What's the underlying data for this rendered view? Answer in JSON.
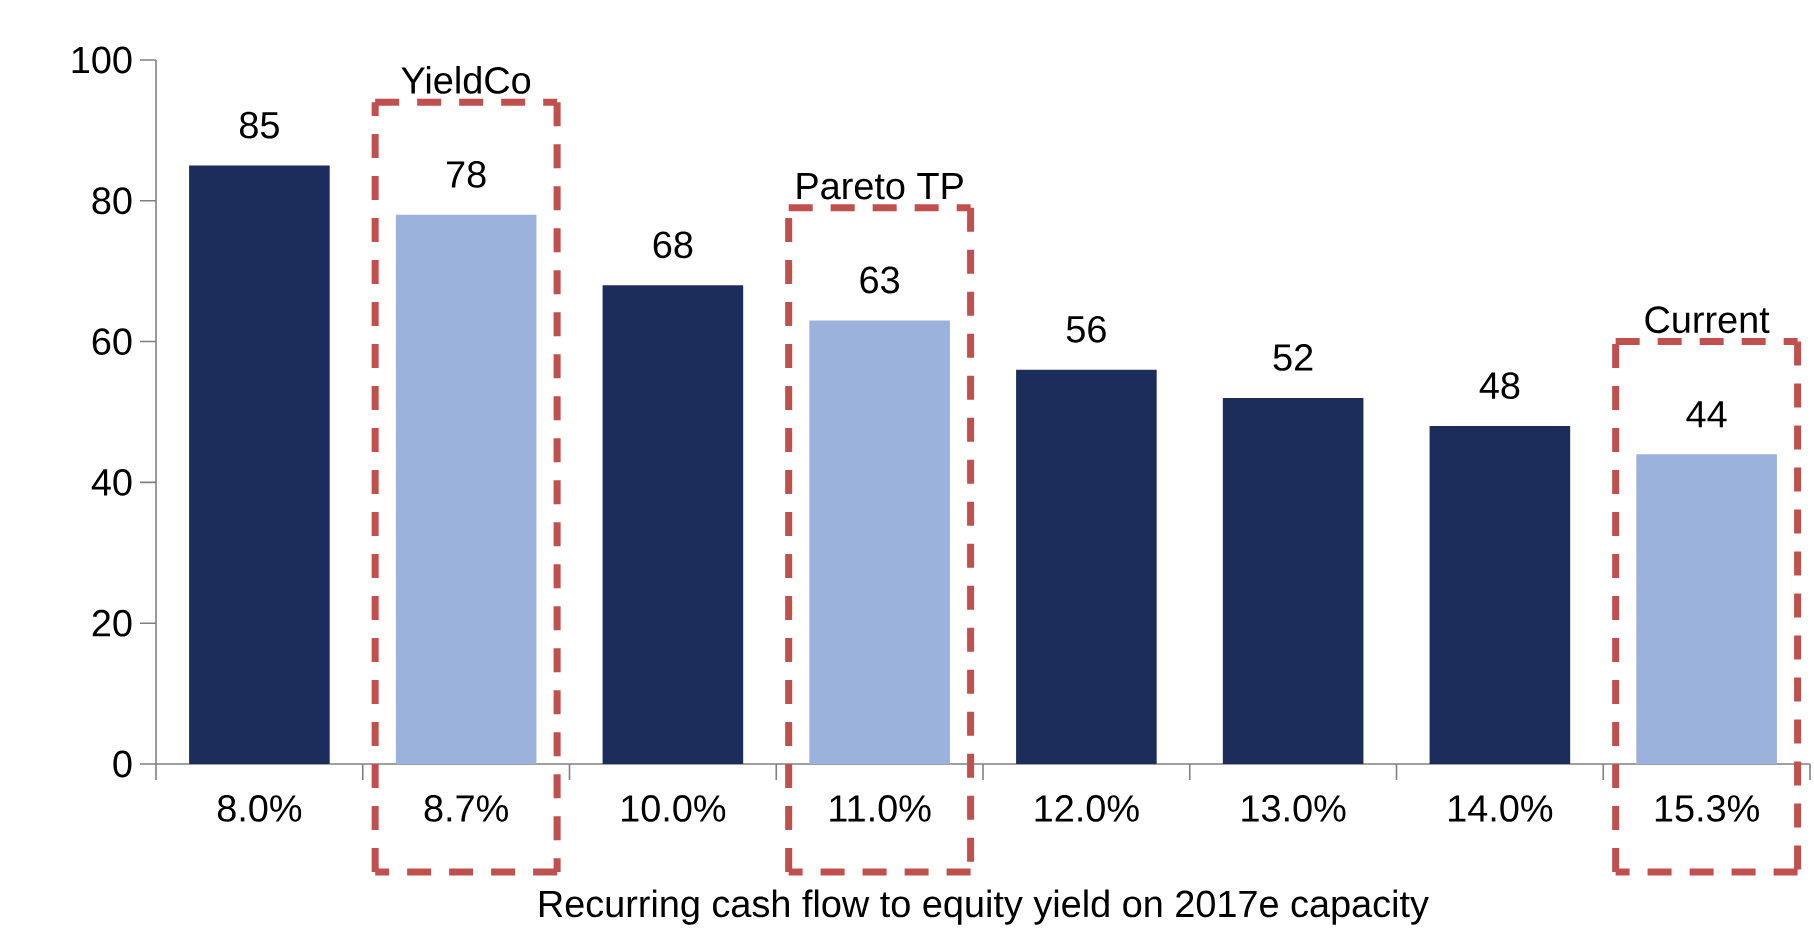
{
  "chart_data": {
    "type": "bar",
    "xlabel": "Recurring cash flow to equity yield  on 2017e capacity",
    "categories": [
      "8.0%",
      "8.7%",
      "10.0%",
      "11.0%",
      "12.0%",
      "13.0%",
      "14.0%",
      "15.3%"
    ],
    "values": [
      85,
      78,
      68,
      63,
      56,
      52,
      48,
      44
    ],
    "colors": [
      "#1c2d5c",
      "#9bb3dc",
      "#1c2d5c",
      "#9bb3dc",
      "#1c2d5c",
      "#1c2d5c",
      "#1c2d5c",
      "#9bb3dc"
    ],
    "data_labels": true,
    "ylim": [
      0,
      100
    ],
    "yticks": [
      0,
      20,
      40,
      60,
      80,
      100
    ],
    "grid": false,
    "annotations": [
      "YieldCo",
      "Pareto TP",
      "Current"
    ]
  }
}
